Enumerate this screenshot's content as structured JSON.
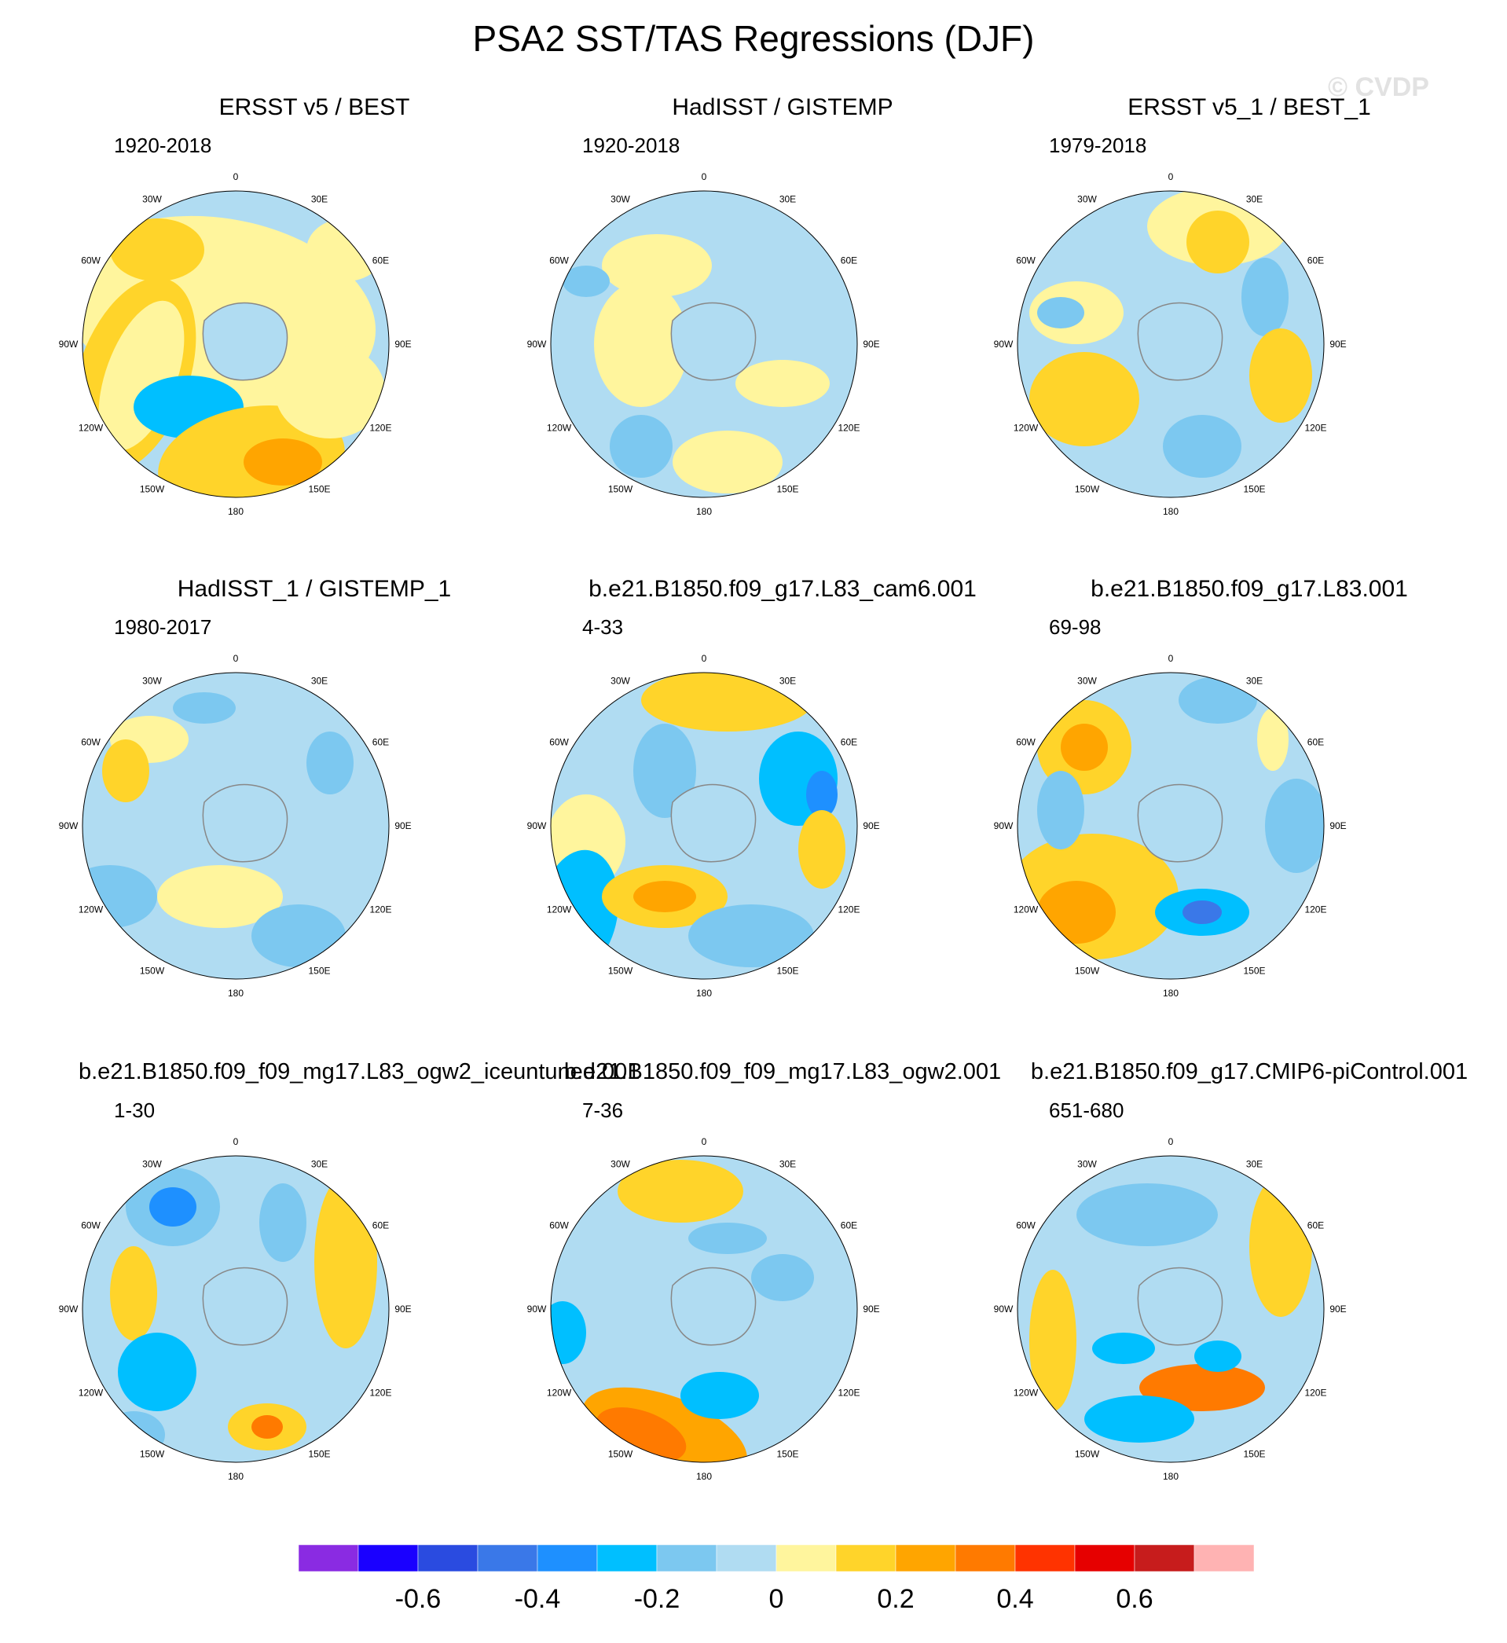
{
  "figure_title": "PSA2 SST/TAS Regressions (DJF)",
  "watermark": "© CVDP",
  "longitude_labels": [
    "0",
    "30E",
    "60E",
    "90E",
    "120E",
    "150E",
    "180",
    "150W",
    "120W",
    "90W",
    "60W",
    "30W"
  ],
  "panels": [
    {
      "title": "ERSST v5 / BEST",
      "period": "1920-2018"
    },
    {
      "title": "HadISST / GISTEMP",
      "period": "1920-2018"
    },
    {
      "title": "ERSST v5_1 / BEST_1",
      "period": "1979-2018"
    },
    {
      "title": "HadISST_1 / GISTEMP_1",
      "period": "1980-2017"
    },
    {
      "title": "b.e21.B1850.f09_g17.L83_cam6.001",
      "period": "4-33"
    },
    {
      "title": "b.e21.B1850.f09_g17.L83.001",
      "period": "69-98"
    },
    {
      "title": "b.e21.B1850.f09_f09_mg17.L83_ogw2_iceuntuned.001",
      "period": "1-30"
    },
    {
      "title": "b.e21.B1850.f09_f09_mg17.L83_ogw2.001",
      "period": "7-36"
    },
    {
      "title": "b.e21.B1850.f09_g17.CMIP6-piControl.001",
      "period": "651-680"
    }
  ],
  "colorbar": {
    "colors": [
      "#8a2be2",
      "#1a00ff",
      "#2a4be0",
      "#3a78e8",
      "#1e90ff",
      "#00bfff",
      "#7cc8f0",
      "#b0dcf2",
      "#fff59d",
      "#ffd42a",
      "#ffa500",
      "#ff7a00",
      "#ff3300",
      "#e60000",
      "#c71c1c",
      "#ffb3b3"
    ],
    "tick_labels": [
      "-0.6",
      "-0.4",
      "-0.2",
      "0",
      "0.2",
      "0.4",
      "0.6"
    ]
  },
  "map_features": {
    "background_color": "#b0dcf2",
    "land_color": "#b0dcf2",
    "coast_color": "#888888"
  }
}
